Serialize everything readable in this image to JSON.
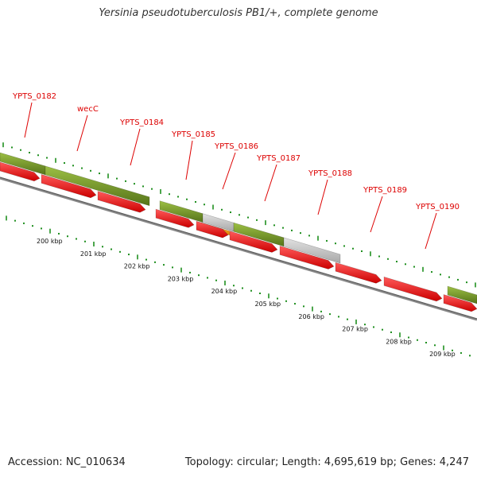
{
  "title": "Yersinia pseudotuberculosis PB1/+, complete genome",
  "footer": {
    "accession": "Accession: NC_010634",
    "summary": "Topology: circular; Length: 4,695,619 bp; Genes: 4,247"
  },
  "colors": {
    "label": "#dd0000",
    "cds_forward": "#6f8f1f",
    "cds_reverse": "#ee0000",
    "pseudo": "#c8c8c8",
    "rna": "#ff9900",
    "backbone": "#777777",
    "ticks": "#1f8f1f"
  },
  "gene_labels": [
    "YPTS_0182",
    "wecC",
    "YPTS_0184",
    "YPTS_0185",
    "YPTS_0186",
    "YPTS_0187",
    "YPTS_0188",
    "YPTS_0189",
    "YPTS_0190"
  ],
  "kbp_labels": [
    "200 kbp",
    "201 kbp",
    "202 kbp",
    "203 kbp",
    "204 kbp",
    "205 kbp",
    "206 kbp",
    "207 kbp",
    "208 kbp",
    "209 kbp"
  ]
}
